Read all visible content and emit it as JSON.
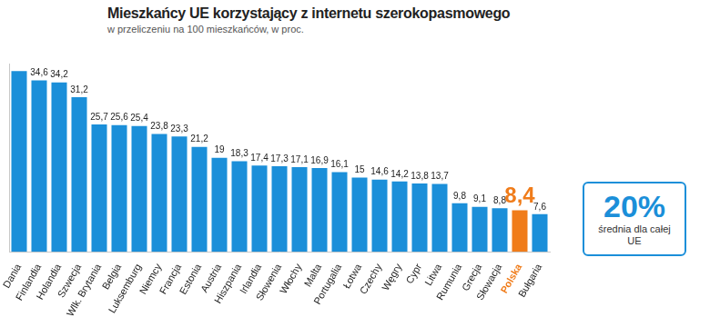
{
  "chart_data": {
    "type": "bar",
    "title": "Mieszkańcy UE korzystający z internetu szerokopasmowego",
    "subtitle": "w przeliczeniu na 100 mieszkańców, w proc.",
    "categories": [
      "Dania",
      "Finlandia",
      "Holandia",
      "Szwecja",
      "Wlk. Brytania",
      "Belgia",
      "Luksemburg",
      "Niemcy",
      "Francja",
      "Estonia",
      "Austria",
      "Hiszpania",
      "Irlandia",
      "Słowenia",
      "Włochy",
      "Malta",
      "Portugalia",
      "Łotwa",
      "Czechy",
      "Węgry",
      "Cypr",
      "Litwa",
      "Rumunia",
      "Grecja",
      "Słowacja",
      "Polska",
      "Bułgaria"
    ],
    "values": [
      36.5,
      34.6,
      34.2,
      31.2,
      25.7,
      25.6,
      25.4,
      23.8,
      23.3,
      21.2,
      19,
      18.3,
      17.4,
      17.3,
      17.1,
      16.9,
      16.1,
      15,
      14.6,
      14.2,
      13.8,
      13.7,
      9.8,
      9.1,
      8.8,
      8.4,
      7.6
    ],
    "value_labels": [
      null,
      "34,6",
      "34,2",
      "31,2",
      "25,7",
      "25,6",
      "25,4",
      "23,8",
      "23,3",
      "21,2",
      "19",
      "18,3",
      "17,4",
      "17,3",
      "17,1",
      "16,9",
      "16,1",
      "15",
      "14,6",
      "14,2",
      "13,8",
      "13,7",
      "9,8",
      "9,1",
      "8,8",
      "8,4",
      "7,6"
    ],
    "colors": [
      "#1b8fd9",
      "#1b8fd9",
      "#1b8fd9",
      "#1b8fd9",
      "#1b8fd9",
      "#1b8fd9",
      "#1b8fd9",
      "#1b8fd9",
      "#1b8fd9",
      "#1b8fd9",
      "#1b8fd9",
      "#1b8fd9",
      "#1b8fd9",
      "#1b8fd9",
      "#1b8fd9",
      "#1b8fd9",
      "#1b8fd9",
      "#1b8fd9",
      "#1b8fd9",
      "#1b8fd9",
      "#1b8fd9",
      "#1b8fd9",
      "#1b8fd9",
      "#1b8fd9",
      "#1b8fd9",
      "#f07c1a",
      "#1b8fd9"
    ],
    "ylim": [
      0,
      38
    ],
    "grid": false,
    "data_labels": true,
    "tick_labels": "x",
    "annotations": [
      {
        "value": 20,
        "label": "20%",
        "text": "średnia dla całej UE"
      }
    ]
  }
}
